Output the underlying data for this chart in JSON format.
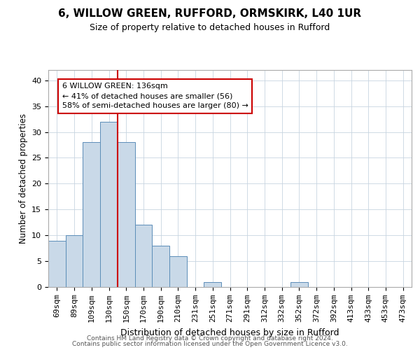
{
  "title1": "6, WILLOW GREEN, RUFFORD, ORMSKIRK, L40 1UR",
  "title2": "Size of property relative to detached houses in Rufford",
  "xlabel": "Distribution of detached houses by size in Rufford",
  "ylabel": "Number of detached properties",
  "bar_labels": [
    "69sqm",
    "89sqm",
    "109sqm",
    "130sqm",
    "150sqm",
    "170sqm",
    "190sqm",
    "210sqm",
    "231sqm",
    "251sqm",
    "271sqm",
    "291sqm",
    "312sqm",
    "332sqm",
    "352sqm",
    "372sqm",
    "392sqm",
    "413sqm",
    "433sqm",
    "453sqm",
    "473sqm"
  ],
  "bar_values": [
    9,
    10,
    28,
    32,
    28,
    12,
    8,
    6,
    0,
    1,
    0,
    0,
    0,
    0,
    1,
    0,
    0,
    0,
    0,
    0,
    0
  ],
  "bar_color": "#c9d9e8",
  "bar_edgecolor": "#5b8db8",
  "property_line_x": 3.5,
  "property_line_color": "#cc0000",
  "annotation_line1": "6 WILLOW GREEN: 136sqm",
  "annotation_line2": "← 41% of detached houses are smaller (56)",
  "annotation_line3": "58% of semi-detached houses are larger (80) →",
  "annotation_box_color": "#cc0000",
  "ylim": [
    0,
    42
  ],
  "yticks": [
    0,
    5,
    10,
    15,
    20,
    25,
    30,
    35,
    40
  ],
  "footer1": "Contains HM Land Registry data © Crown copyright and database right 2024.",
  "footer2": "Contains public sector information licensed under the Open Government Licence v3.0.",
  "background_color": "#ffffff",
  "grid_color": "#c8d4e0",
  "title1_fontsize": 11,
  "title2_fontsize": 9,
  "ylabel_fontsize": 8.5,
  "xlabel_fontsize": 9,
  "tick_fontsize": 8,
  "annotation_fontsize": 8,
  "footer_fontsize": 6.5
}
